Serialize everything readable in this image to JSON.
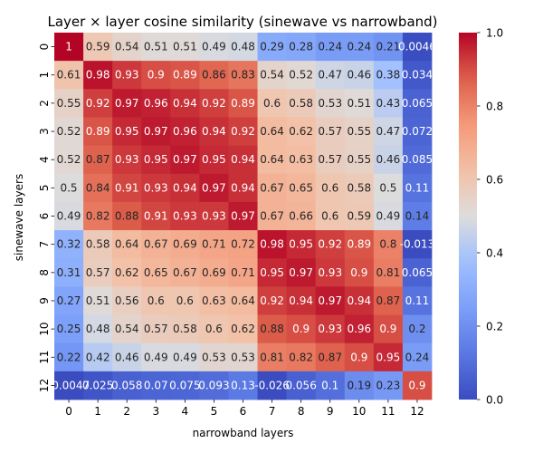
{
  "chart_data": {
    "type": "heatmap",
    "title": "Layer × layer cosine similarity (sinewave vs narrowband)",
    "xlabel": "narrowband layers",
    "ylabel": "sinewave layers",
    "x_tick_labels": [
      "0",
      "1",
      "2",
      "3",
      "4",
      "5",
      "6",
      "7",
      "8",
      "9",
      "10",
      "11",
      "12"
    ],
    "y_tick_labels": [
      "0",
      "1",
      "2",
      "3",
      "4",
      "5",
      "6",
      "7",
      "8",
      "9",
      "10",
      "11",
      "12"
    ],
    "colormap": "coolwarm",
    "vmin": 0.0,
    "vmax": 1.0,
    "colorbar_ticks": [
      "0.0",
      "0.2",
      "0.4",
      "0.6",
      "0.8",
      "1.0"
    ],
    "values": [
      [
        1,
        0.59,
        0.54,
        0.51,
        0.51,
        0.49,
        0.48,
        0.29,
        0.28,
        0.24,
        0.24,
        0.21,
        0.0046
      ],
      [
        0.61,
        0.98,
        0.93,
        0.9,
        0.89,
        0.86,
        0.83,
        0.54,
        0.52,
        0.47,
        0.46,
        0.38,
        0.034
      ],
      [
        0.55,
        0.92,
        0.97,
        0.96,
        0.94,
        0.92,
        0.89,
        0.6,
        0.58,
        0.53,
        0.51,
        0.43,
        0.065
      ],
      [
        0.52,
        0.89,
        0.95,
        0.97,
        0.96,
        0.94,
        0.92,
        0.64,
        0.62,
        0.57,
        0.55,
        0.47,
        0.072
      ],
      [
        0.52,
        0.87,
        0.93,
        0.95,
        0.97,
        0.95,
        0.94,
        0.64,
        0.63,
        0.57,
        0.55,
        0.46,
        0.085
      ],
      [
        0.5,
        0.84,
        0.91,
        0.93,
        0.94,
        0.97,
        0.94,
        0.67,
        0.65,
        0.6,
        0.58,
        0.5,
        0.11
      ],
      [
        0.49,
        0.82,
        0.88,
        0.91,
        0.93,
        0.93,
        0.97,
        0.67,
        0.66,
        0.6,
        0.59,
        0.49,
        0.14
      ],
      [
        0.32,
        0.58,
        0.64,
        0.67,
        0.69,
        0.71,
        0.72,
        0.98,
        0.95,
        0.92,
        0.89,
        0.8,
        -0.013
      ],
      [
        0.31,
        0.57,
        0.62,
        0.65,
        0.67,
        0.69,
        0.71,
        0.95,
        0.97,
        0.93,
        0.9,
        0.81,
        0.065
      ],
      [
        0.27,
        0.51,
        0.56,
        0.6,
        0.6,
        0.63,
        0.64,
        0.92,
        0.94,
        0.97,
        0.94,
        0.87,
        0.11
      ],
      [
        0.25,
        0.48,
        0.54,
        0.57,
        0.58,
        0.6,
        0.62,
        0.88,
        0.9,
        0.93,
        0.96,
        0.9,
        0.2
      ],
      [
        0.22,
        0.42,
        0.46,
        0.49,
        0.49,
        0.53,
        0.53,
        0.81,
        0.82,
        0.87,
        0.9,
        0.95,
        0.24
      ],
      [
        -0.0047,
        0.025,
        0.058,
        0.07,
        0.075,
        0.093,
        0.13,
        -0.026,
        0.056,
        0.1,
        0.19,
        0.23,
        0.9
      ]
    ],
    "grid": false,
    "legend": "none"
  }
}
